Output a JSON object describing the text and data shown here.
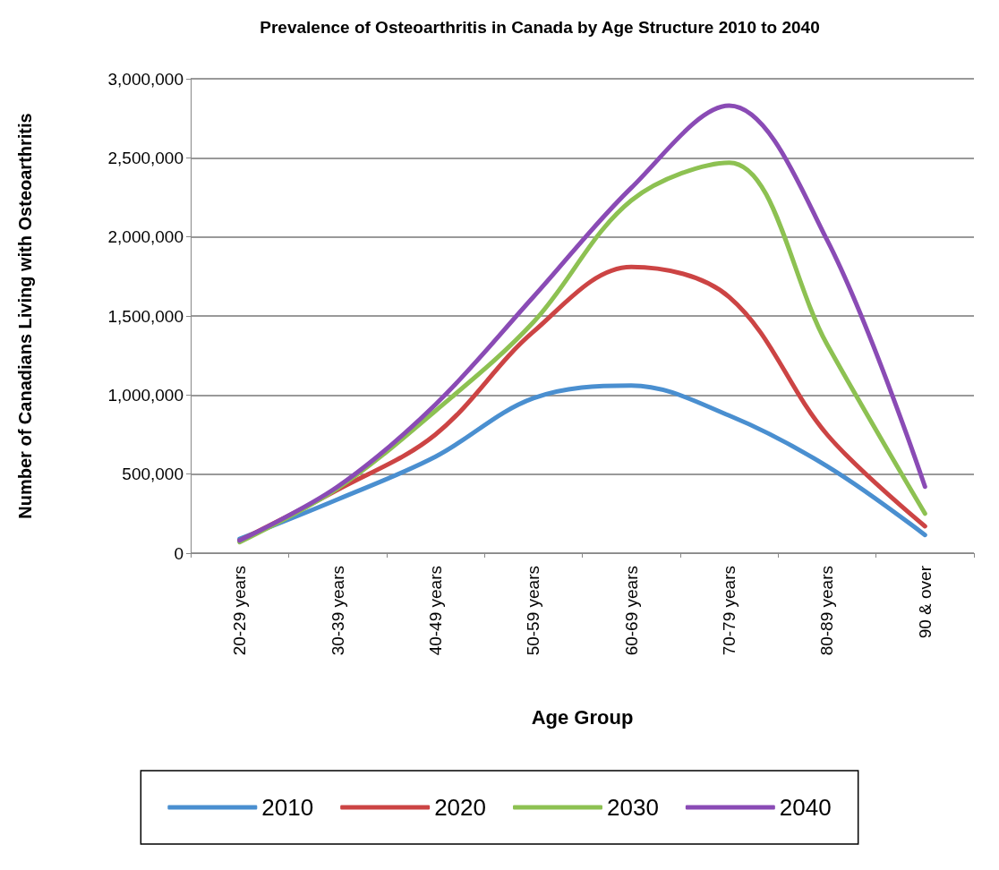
{
  "chart_data": {
    "type": "line",
    "title": "Prevalence of Osteoarthritis in Canada by Age Structure 2010 to 2040",
    "xlabel": "Age Group",
    "ylabel": "Number of Canadians Living with Osteoarthritis",
    "categories": [
      "20-29 years",
      "30-39 years",
      "40-49 years",
      "50-59 years",
      "60-69 years",
      "70-79 years",
      "80-89 years",
      "90 & over"
    ],
    "series": [
      {
        "name": "2010",
        "color": "#4a8fd0",
        "values": [
          90000,
          340000,
          610000,
          980000,
          1060000,
          870000,
          550000,
          115000
        ]
      },
      {
        "name": "2020",
        "color": "#cc4444",
        "values": [
          80000,
          400000,
          750000,
          1400000,
          1810000,
          1620000,
          750000,
          170000
        ]
      },
      {
        "name": "2030",
        "color": "#8dc152",
        "values": [
          70000,
          410000,
          900000,
          1460000,
          2230000,
          2470000,
          1320000,
          250000
        ]
      },
      {
        "name": "2040",
        "color": "#8a4bb5",
        "values": [
          80000,
          420000,
          940000,
          1620000,
          2310000,
          2830000,
          1980000,
          420000
        ]
      }
    ],
    "ylim": [
      0,
      3000000
    ],
    "yticks": [
      0,
      {
        "value": 500000,
        "label": "500,000"
      },
      {
        "value": 1000000,
        "label": "1,000,000"
      },
      {
        "value": 1500000,
        "label": "1,500,000"
      },
      {
        "value": 2000000,
        "label": "2,000,000"
      },
      {
        "value": 2500000,
        "label": "2,500,000"
      },
      {
        "value": 3000000,
        "label": "3,000,000"
      }
    ],
    "grid": "y",
    "legend": "bottom",
    "marker": "none",
    "line_style": "solid"
  }
}
